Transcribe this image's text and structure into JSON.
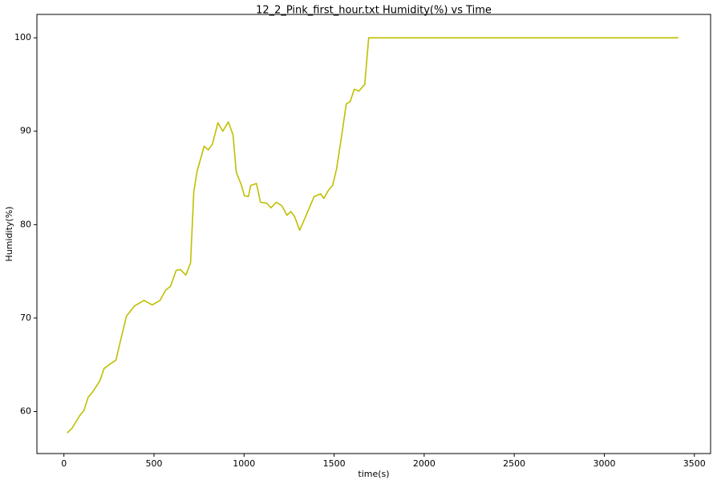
{
  "chart_data": {
    "type": "line",
    "title": "12_2_Pink_first_hour.txt  Humidity(%) vs Time",
    "x_label": "time(s)",
    "y_label": "Humidity(%)",
    "xlim": [
      -150,
      3590
    ],
    "ylim": [
      55.5,
      102.5
    ],
    "xticks": [
      0,
      500,
      1000,
      1500,
      2000,
      2500,
      3000,
      3500
    ],
    "yticks": [
      60,
      70,
      80,
      90,
      100
    ],
    "grid": false,
    "series": [
      {
        "name": "Humidity(%)",
        "color": "#bfbf00",
        "x": [
          18,
          45,
          89,
          111,
          134,
          160,
          200,
          223,
          258,
          289,
          312,
          347,
          392,
          445,
          490,
          534,
          565,
          592,
          623,
          646,
          677,
          703,
          721,
          739,
          779,
          801,
          824,
          855,
          882,
          913,
          939,
          957,
          984,
          1002,
          1024,
          1037,
          1069,
          1091,
          1126,
          1149,
          1180,
          1211,
          1238,
          1260,
          1282,
          1309,
          1336,
          1358,
          1389,
          1425,
          1443,
          1469,
          1492,
          1514,
          1545,
          1567,
          1590,
          1612,
          1638,
          1670,
          1692,
          3411
        ],
        "values": [
          57.7,
          58.2,
          59.6,
          60.1,
          61.5,
          62.1,
          63.3,
          64.6,
          65.1,
          65.5,
          67.4,
          70.2,
          71.3,
          71.9,
          71.4,
          71.9,
          73.0,
          73.4,
          75.1,
          75.2,
          74.6,
          75.9,
          83.5,
          85.7,
          88.4,
          88.0,
          88.6,
          90.9,
          90.0,
          91.0,
          89.6,
          85.6,
          84.3,
          83.1,
          83.0,
          84.2,
          84.4,
          82.4,
          82.3,
          81.8,
          82.4,
          82.0,
          81.0,
          81.4,
          80.8,
          79.4,
          80.6,
          81.6,
          83.0,
          83.3,
          82.8,
          83.7,
          84.2,
          86.0,
          89.9,
          92.9,
          93.2,
          94.5,
          94.3,
          95.0,
          100,
          100
        ]
      }
    ]
  }
}
